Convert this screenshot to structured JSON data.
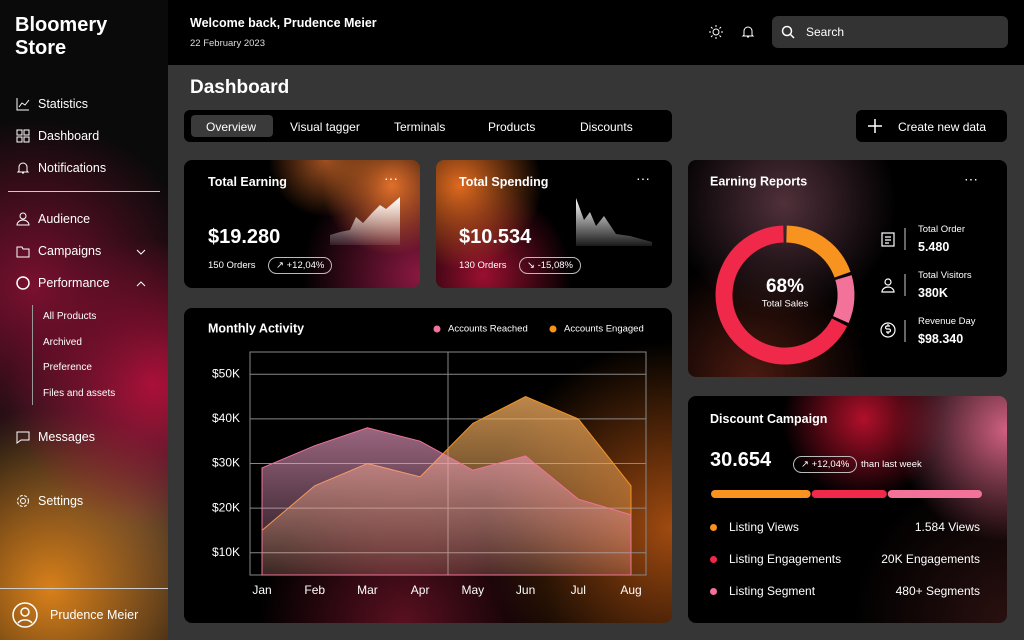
{
  "sidebar": {
    "brand": "Bloomery Store",
    "nav": [
      "Statistics",
      "Dashboard",
      "Notifications"
    ],
    "nav2": [
      "Audience",
      "Campaigns",
      "Performance"
    ],
    "sub": [
      "All Products",
      "Archived",
      "Preference",
      "Files and assets"
    ],
    "messages": "Messages",
    "settings": "Settings",
    "user": "Prudence Meier"
  },
  "header": {
    "welcome": "Welcome back, Prudence Meier",
    "date": "22 February 2023",
    "search": "Search"
  },
  "page_title": "Dashboard",
  "tabs": [
    "Overview",
    "Visual tagger",
    "Terminals",
    "Products",
    "Discounts"
  ],
  "create_button": "Create new data",
  "cards": [
    {
      "title": "Total Earning",
      "value": "$19.280",
      "orders": "150 Orders",
      "change": "+12,04%"
    },
    {
      "title": "Total Spending",
      "value": "$10.534",
      "orders": "130 Orders",
      "change": "-15,08%"
    }
  ],
  "earning_reports": {
    "title": "Earning Reports",
    "stats": [
      {
        "label": "Total Order",
        "value": "5.480"
      },
      {
        "label": "Total Visitors",
        "value": "380K"
      },
      {
        "label": "Revenue Day",
        "value": "$98.340"
      }
    ]
  },
  "discount": {
    "title": "Discount Campaign",
    "value": "30.654",
    "change": "+12,04%",
    "note": "than last week",
    "bar": {
      "values": [
        37,
        28,
        35
      ],
      "colors": [
        "#f7931e",
        "#f0284a",
        "#f2729a"
      ]
    },
    "items": [
      {
        "label": "Listing Views",
        "value": "1.584 Views",
        "color": "#f7931e"
      },
      {
        "label": "Listing Engagements",
        "value": "20K Engagements",
        "color": "#f0284a"
      },
      {
        "label": "Listing Segment",
        "value": "480+ Segments",
        "color": "#f2729a"
      }
    ]
  },
  "chart_data": [
    {
      "type": "area",
      "title": "Monthly Activity",
      "categories": [
        "Jan",
        "Feb",
        "Mar",
        "Apr",
        "May",
        "Jun",
        "Jul",
        "Aug"
      ],
      "series": [
        {
          "name": "Accounts Reached",
          "color": "#f2729a",
          "values": [
            29000,
            34000,
            38000,
            35000,
            28500,
            31700,
            22000,
            18500
          ]
        },
        {
          "name": "Accounts Engaged",
          "color": "#f7931e",
          "values": [
            15000,
            25000,
            30000,
            27000,
            39000,
            45000,
            40000,
            25000
          ]
        }
      ],
      "ylim": [
        5000,
        55000
      ],
      "yticks": [
        {
          "value": 10000,
          "label": "$10K"
        },
        {
          "value": 20000,
          "label": "$20K"
        },
        {
          "value": 30000,
          "label": "$30K"
        },
        {
          "value": 40000,
          "label": "$40K"
        },
        {
          "value": 50000,
          "label": "$50K"
        }
      ],
      "grid": true
    },
    {
      "type": "pie",
      "values": [
        20,
        12,
        68
      ],
      "colors": [
        "#f7931e",
        "#f2729a",
        "#f0284a"
      ],
      "label": "68%",
      "sublabel": "Total Sales"
    }
  ]
}
